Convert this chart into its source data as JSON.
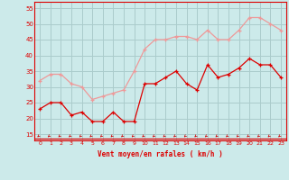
{
  "x": [
    0,
    1,
    2,
    3,
    4,
    5,
    6,
    7,
    8,
    9,
    10,
    11,
    12,
    13,
    14,
    15,
    16,
    17,
    18,
    19,
    20,
    21,
    22,
    23
  ],
  "wind_mean": [
    23,
    25,
    25,
    21,
    22,
    19,
    19,
    22,
    19,
    19,
    31,
    31,
    33,
    35,
    31,
    29,
    37,
    33,
    34,
    36,
    39,
    37,
    37,
    33
  ],
  "wind_gust": [
    32,
    34,
    34,
    31,
    30,
    26,
    27,
    28,
    29,
    35,
    42,
    45,
    45,
    46,
    46,
    45,
    48,
    45,
    45,
    48,
    52,
    52,
    50,
    48
  ],
  "bg_color": "#cceaea",
  "grid_color": "#aacccc",
  "mean_color": "#dd0000",
  "gust_color": "#ee9999",
  "arrow_color": "#cc0000",
  "xlabel": "Vent moyen/en rafales ( km/h )",
  "ylim": [
    13,
    57
  ],
  "yticks": [
    15,
    20,
    25,
    30,
    35,
    40,
    45,
    50,
    55
  ],
  "xticks": [
    0,
    1,
    2,
    3,
    4,
    5,
    6,
    7,
    8,
    9,
    10,
    11,
    12,
    13,
    14,
    15,
    16,
    17,
    18,
    19,
    20,
    21,
    22,
    23
  ],
  "xlim": [
    -0.5,
    23.5
  ]
}
